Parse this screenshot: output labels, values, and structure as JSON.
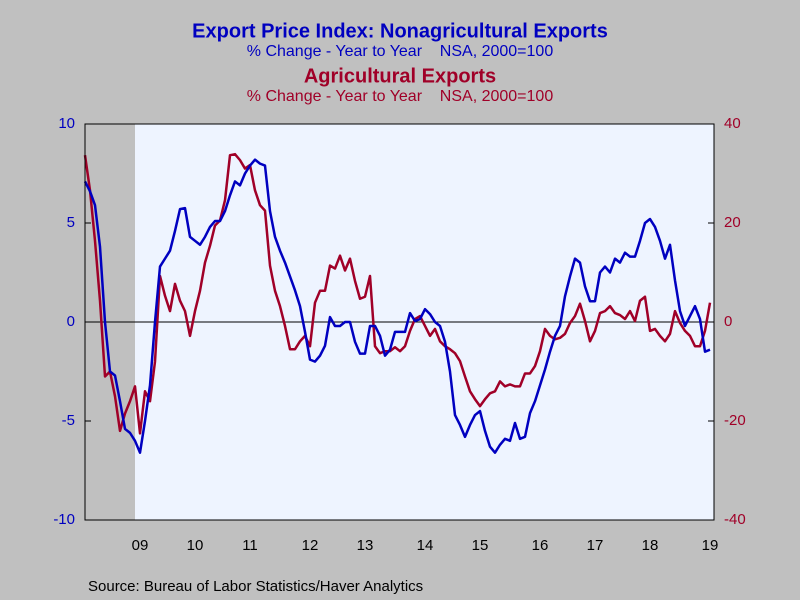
{
  "chart_data": {
    "type": "line",
    "subtitles": [
      "% Change - Year to Year    NSA, 2000=100",
      "% Change - Year to Year    NSA, 2000=100"
    ],
    "source": "Source:  Bureau of Labor Statistics/Haver Analytics",
    "categories": [
      null,
      null,
      null,
      null,
      null,
      null,
      null,
      null,
      null,
      null,
      null,
      "09",
      null,
      null,
      null,
      null,
      null,
      null,
      null,
      null,
      null,
      null,
      "10",
      null,
      null,
      null,
      null,
      null,
      null,
      null,
      null,
      null,
      null,
      "11",
      null,
      null,
      null,
      null,
      null,
      null,
      null,
      null,
      null,
      null,
      null,
      "12",
      null,
      null,
      null,
      null,
      null,
      null,
      null,
      null,
      null,
      null,
      "13",
      null,
      null,
      null,
      null,
      null,
      null,
      null,
      null,
      null,
      null,
      null,
      "14",
      null,
      null,
      null,
      null,
      null,
      null,
      null,
      null,
      null,
      null,
      "15",
      null,
      null,
      null,
      null,
      null,
      null,
      null,
      null,
      null,
      null,
      null,
      "16",
      null,
      null,
      null,
      null,
      null,
      null,
      null,
      null,
      null,
      null,
      "17",
      null,
      null,
      null,
      null,
      null,
      null,
      null,
      null,
      null,
      null,
      "18",
      null,
      null,
      null,
      null,
      null,
      null,
      null,
      null,
      null,
      null,
      null,
      "19"
    ],
    "series": [
      {
        "name": "Export Price Index: Nonagricultural Exports",
        "color": "#0000c0",
        "axis": "y",
        "values": [
          7.1,
          6.6,
          5.9,
          3.8,
          0,
          -2.5,
          -2.7,
          -4,
          -5.4,
          -5.6,
          -6.0,
          -6.6,
          -5,
          -3.2,
          0,
          2.8,
          3.2,
          3.6,
          4.6,
          5.7,
          5.75,
          4.3,
          4.1,
          3.9,
          4.3,
          4.8,
          5.1,
          5.1,
          5.6,
          6.4,
          7.1,
          6.9,
          7.5,
          7.9,
          8.2,
          8.0,
          7.9,
          5.6,
          4.3,
          3.6,
          3.0,
          2.3,
          1.6,
          0.8,
          -0.5,
          -1.9,
          -2.0,
          -1.7,
          -1.2,
          0.25,
          -0.2,
          -0.2,
          0,
          0,
          -1.0,
          -1.6,
          -1.6,
          -0.2,
          -0.2,
          -0.7,
          -1.7,
          -1.4,
          -0.5,
          -0.5,
          -0.5,
          0.45,
          0.05,
          0.15,
          0.65,
          0.4,
          0,
          -0.2,
          -1,
          -2.5,
          -4.7,
          -5.2,
          -5.8,
          -5.2,
          -4.7,
          -4.5,
          -5.5,
          -6.3,
          -6.6,
          -6.2,
          -5.9,
          -6.0,
          -5.1,
          -5.9,
          -5.8,
          -4.6,
          -4.0,
          -3.2,
          -2.4,
          -1.5,
          -0.7,
          -0.2,
          1.3,
          2.3,
          3.2,
          3.0,
          1.8,
          1.05,
          1.05,
          2.5,
          2.8,
          2.5,
          3.2,
          3.0,
          3.5,
          3.3,
          3.3,
          4.1,
          5.0,
          5.2,
          4.8,
          4.1,
          3.2,
          3.9,
          2.1,
          0.55,
          -0.2,
          0.3,
          0.8,
          0.15,
          -1.5,
          -1.4
        ]
      },
      {
        "name": "Agricultural Exports",
        "color": "#a00028",
        "axis": "y2",
        "values": [
          33.7,
          26.6,
          16.4,
          4.3,
          -11,
          -10,
          -15,
          -22,
          -18.5,
          -16,
          -13,
          -22.5,
          -14,
          -16,
          -8,
          9.3,
          5.3,
          2.2,
          7.7,
          4.3,
          2.2,
          -2.8,
          2.2,
          6.3,
          12,
          15.4,
          19.5,
          20.5,
          24.6,
          33.7,
          33.9,
          32.7,
          31,
          31.7,
          26.6,
          23.6,
          22.5,
          11.4,
          6.3,
          3.2,
          -0.8,
          -5.5,
          -5.5,
          -3.9,
          -2.8,
          -4.9,
          3.9,
          6.3,
          6.3,
          11.4,
          10.8,
          13.4,
          10.4,
          12.8,
          8.3,
          4.7,
          5.1,
          9.3,
          -4.9,
          -6.3,
          -5.9,
          -5.9,
          -5.1,
          -5.9,
          -4.9,
          -1.8,
          0.6,
          1.2,
          -0.8,
          -2.8,
          -1.4,
          -3.9,
          -4.9,
          -5.5,
          -6.3,
          -7.9,
          -11,
          -14,
          -15.6,
          -17,
          -15.6,
          -14.4,
          -14,
          -12,
          -13,
          -12.6,
          -13,
          -13,
          -10.4,
          -10.4,
          -8.9,
          -5.9,
          -1.4,
          -2.8,
          -3.5,
          -3.2,
          -2.4,
          -0.2,
          1.2,
          3.7,
          0.2,
          -3.9,
          -1.8,
          1.8,
          2.2,
          3.2,
          1.8,
          1.4,
          0.6,
          2.2,
          0.2,
          4.3,
          5.1,
          -1.8,
          -1.4,
          -2.8,
          -3.9,
          -2.4,
          2.2,
          -0.2,
          -1.8,
          -2.8,
          -4.9,
          -4.9,
          -1.8,
          3.9
        ]
      }
    ],
    "ylim": [
      -10,
      10
    ],
    "yticks": [
      -10,
      -5,
      0,
      5,
      10
    ],
    "y2lim": [
      -40,
      40
    ],
    "y2ticks": [
      -40,
      -20,
      0,
      20,
      40
    ],
    "shade_range": [
      0,
      10
    ],
    "shade_color": "#c0c0c0",
    "zero_line": true
  }
}
